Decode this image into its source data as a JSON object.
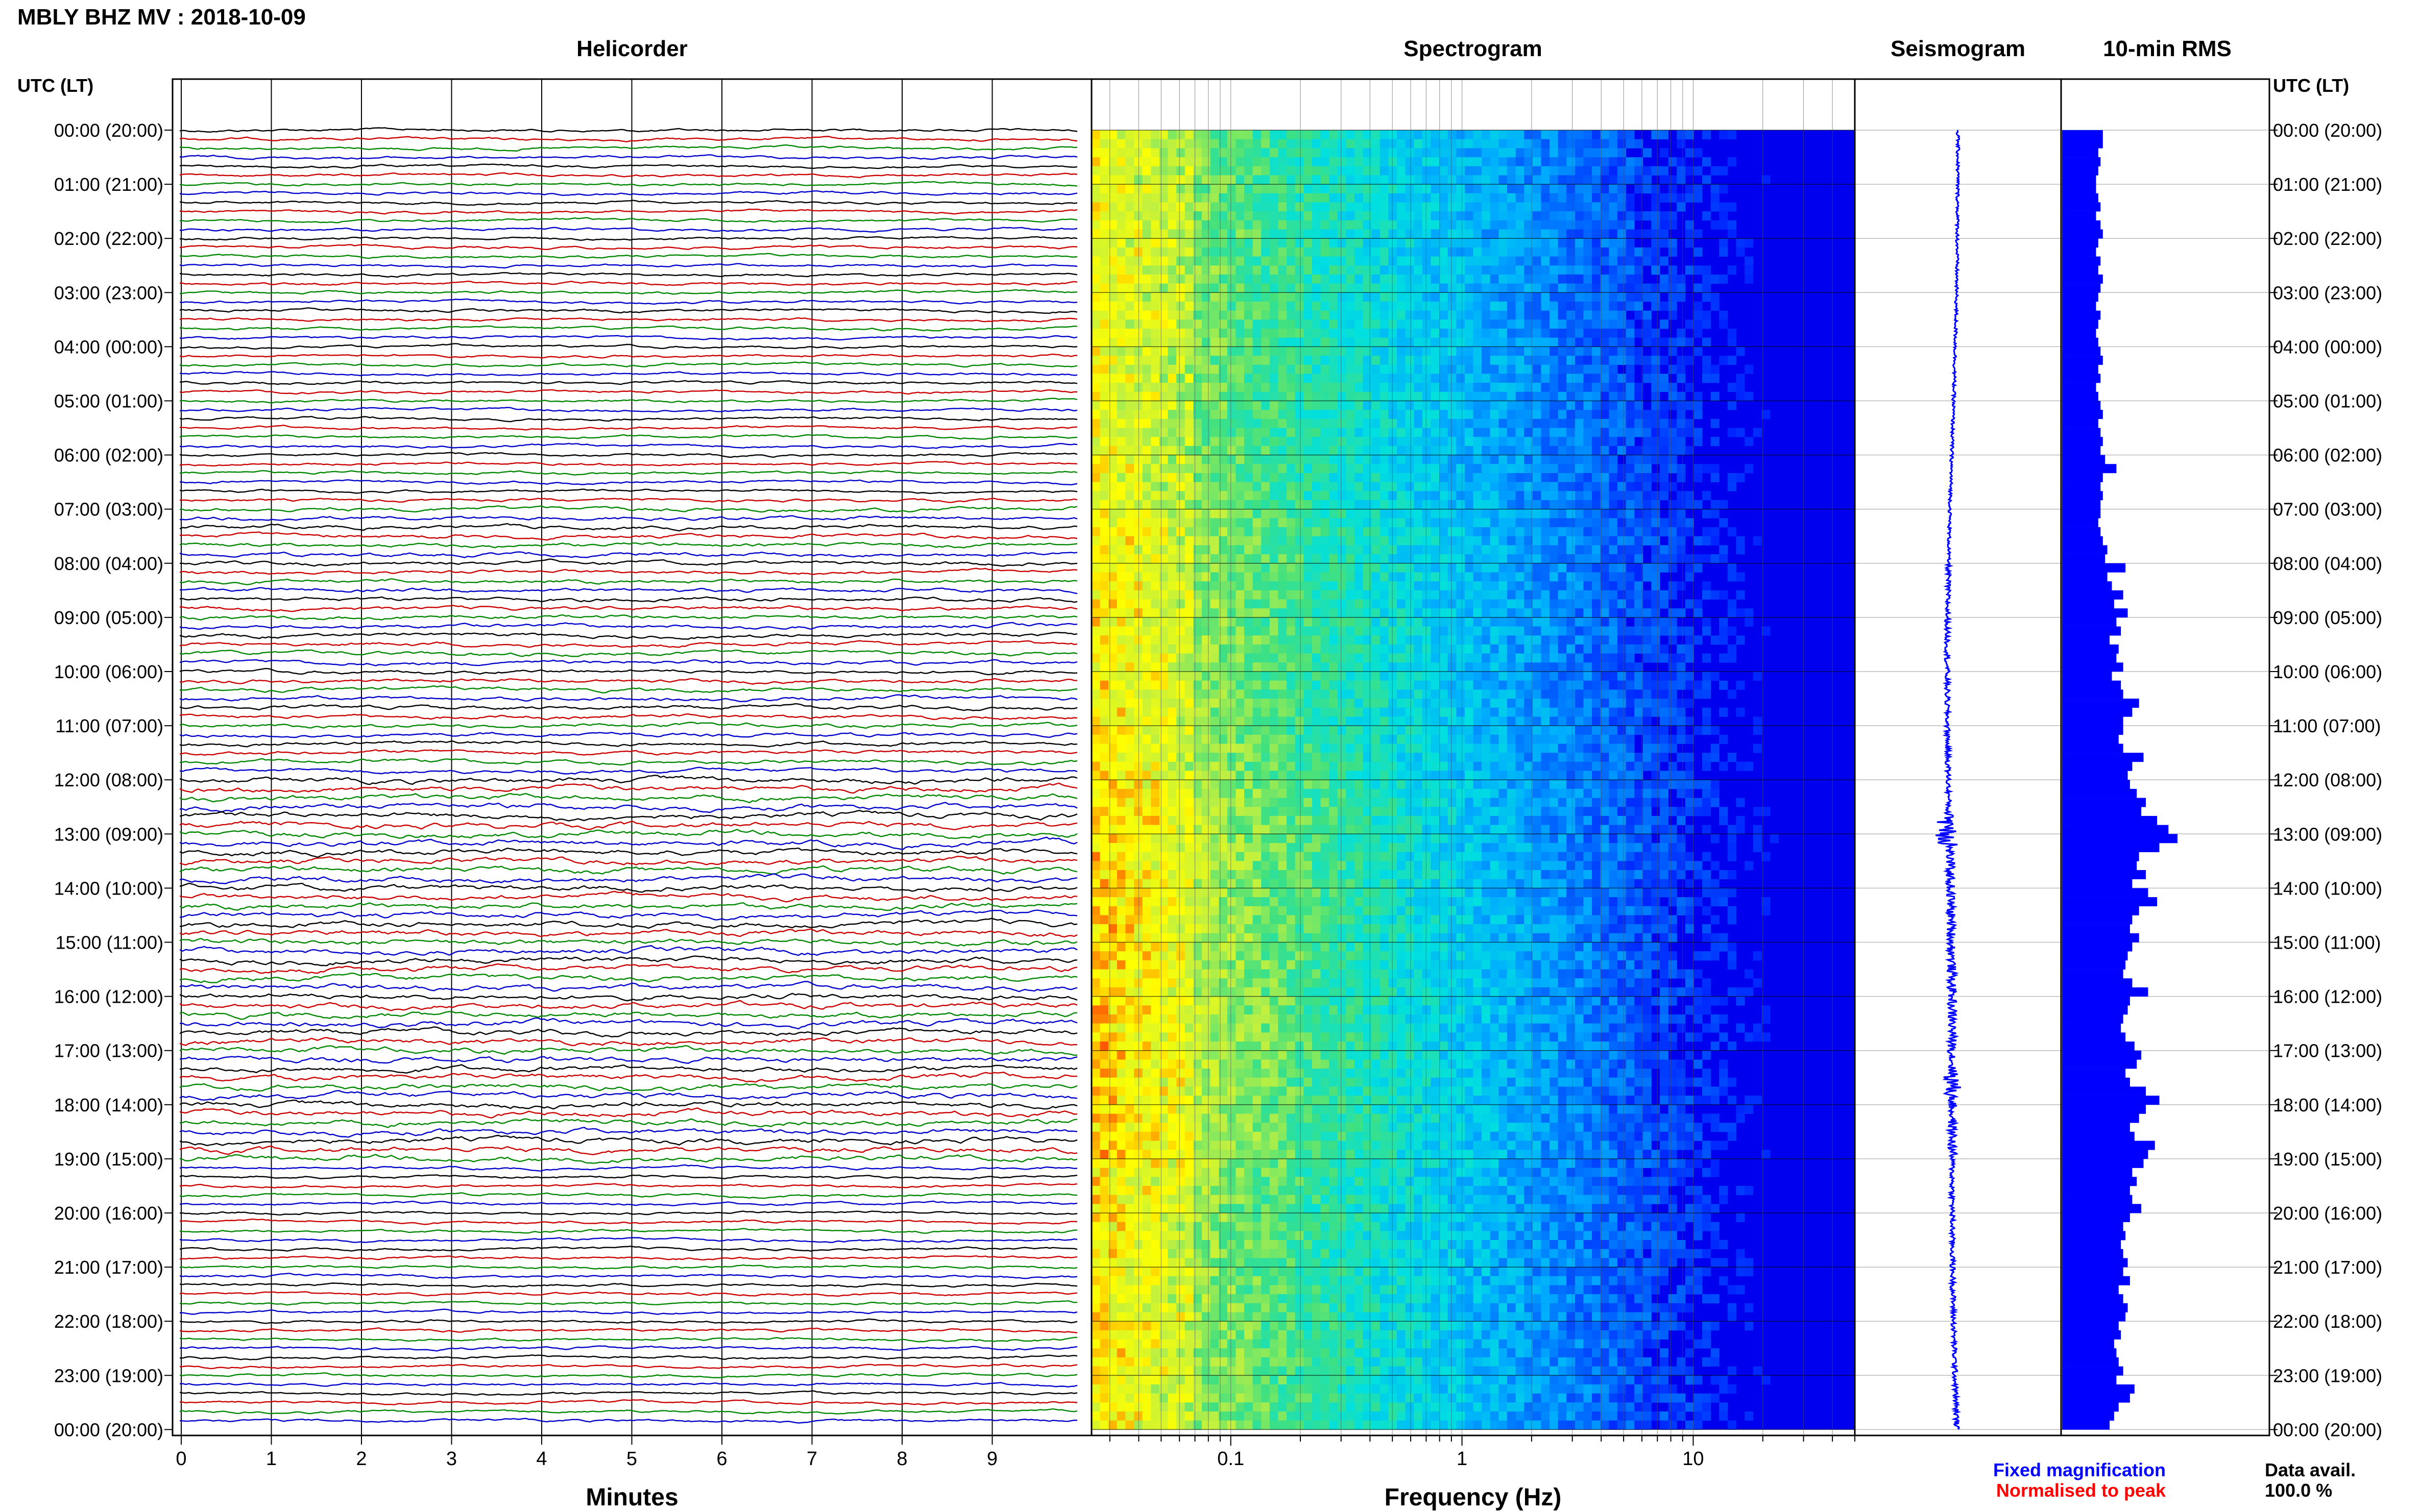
{
  "header": {
    "title": "MBLY BHZ MV : 2018-10-09"
  },
  "panels": {
    "helicorder": "Helicorder",
    "spectrogram": "Spectrogram",
    "seismogram": "Seismogram",
    "rms": "10-min RMS"
  },
  "axes": {
    "time_header": "UTC (LT)",
    "minutes_label": "Minutes",
    "frequency_label": "Frequency (Hz)"
  },
  "footer": {
    "fixed_magnification": "Fixed magnification",
    "normalised_to_peak": "Normalised to peak",
    "data_avail_label": "Data avail.",
    "data_avail_value": "100.0 %"
  },
  "colors": {
    "helicorder_traces": [
      "#000000",
      "#cc0000",
      "#008800",
      "#0000cc"
    ],
    "fixed_magnification": "#0000ff",
    "normalised_to_peak": "#ff0000",
    "seismogram": "#0000ff",
    "rms_bars": "#0000ff"
  },
  "chart_data": [
    {
      "type": "line",
      "title": "Helicorder",
      "xlabel": "Minutes",
      "ylabel": "UTC (LT)",
      "xlim": [
        0,
        10
      ],
      "x_ticks": [
        "0",
        "1",
        "2",
        "3",
        "4",
        "5",
        "6",
        "7",
        "8",
        "9"
      ],
      "row_labels": [
        "00:00 (20:00)",
        "01:00 (21:00)",
        "02:00 (22:00)",
        "03:00 (23:00)",
        "04:00 (00:00)",
        "05:00 (01:00)",
        "06:00 (02:00)",
        "07:00 (03:00)",
        "08:00 (04:00)",
        "09:00 (05:00)",
        "10:00 (06:00)",
        "11:00 (07:00)",
        "12:00 (08:00)",
        "13:00 (09:00)",
        "14:00 (10:00)",
        "15:00 (11:00)",
        "16:00 (12:00)",
        "17:00 (13:00)",
        "18:00 (14:00)",
        "19:00 (15:00)",
        "20:00 (16:00)",
        "21:00 (17:00)",
        "22:00 (18:00)",
        "23:00 (19:00)",
        "00:00 (20:00)"
      ],
      "traces_per_hour": 6,
      "grid": true
    },
    {
      "type": "heatmap",
      "title": "Spectrogram",
      "xlabel": "Frequency (Hz)",
      "x_scale": "log",
      "x_ticks": [
        "0.1",
        "1",
        "10"
      ],
      "xlim": [
        0.025,
        50
      ],
      "colormap": [
        "#0000ff",
        "#0055ff",
        "#00aaff",
        "#00e0e0",
        "#40e080",
        "#c0f040",
        "#ffff00",
        "#ff8800",
        "#ff0000"
      ],
      "grid": true
    },
    {
      "type": "line",
      "title": "Seismogram",
      "grid": true
    },
    {
      "type": "bar",
      "title": "10-min RMS",
      "orientation": "horizontal",
      "rms_values": [
        0.18,
        0.18,
        0.16,
        0.17,
        0.16,
        0.15,
        0.15,
        0.16,
        0.17,
        0.15,
        0.17,
        0.18,
        0.16,
        0.15,
        0.17,
        0.16,
        0.18,
        0.17,
        0.16,
        0.15,
        0.17,
        0.16,
        0.15,
        0.16,
        0.17,
        0.18,
        0.16,
        0.17,
        0.15,
        0.16,
        0.17,
        0.18,
        0.16,
        0.17,
        0.18,
        0.17,
        0.19,
        0.24,
        0.18,
        0.17,
        0.18,
        0.17,
        0.17,
        0.16,
        0.17,
        0.18,
        0.2,
        0.19,
        0.28,
        0.2,
        0.22,
        0.27,
        0.23,
        0.29,
        0.24,
        0.26,
        0.21,
        0.25,
        0.24,
        0.27,
        0.22,
        0.26,
        0.27,
        0.34,
        0.31,
        0.27,
        0.27,
        0.25,
        0.27,
        0.36,
        0.31,
        0.29,
        0.3,
        0.33,
        0.37,
        0.35,
        0.42,
        0.47,
        0.51,
        0.43,
        0.34,
        0.33,
        0.37,
        0.31,
        0.38,
        0.42,
        0.34,
        0.31,
        0.3,
        0.34,
        0.31,
        0.29,
        0.28,
        0.27,
        0.31,
        0.38,
        0.3,
        0.29,
        0.27,
        0.26,
        0.28,
        0.32,
        0.35,
        0.33,
        0.28,
        0.3,
        0.37,
        0.43,
        0.37,
        0.34,
        0.3,
        0.32,
        0.41,
        0.38,
        0.36,
        0.31,
        0.33,
        0.3,
        0.31,
        0.35,
        0.3,
        0.27,
        0.28,
        0.26,
        0.27,
        0.29,
        0.27,
        0.3,
        0.25,
        0.27,
        0.29,
        0.28,
        0.25,
        0.26,
        0.23,
        0.24,
        0.25,
        0.27,
        0.24,
        0.32,
        0.3,
        0.25,
        0.23,
        0.21
      ],
      "grid": true
    }
  ]
}
